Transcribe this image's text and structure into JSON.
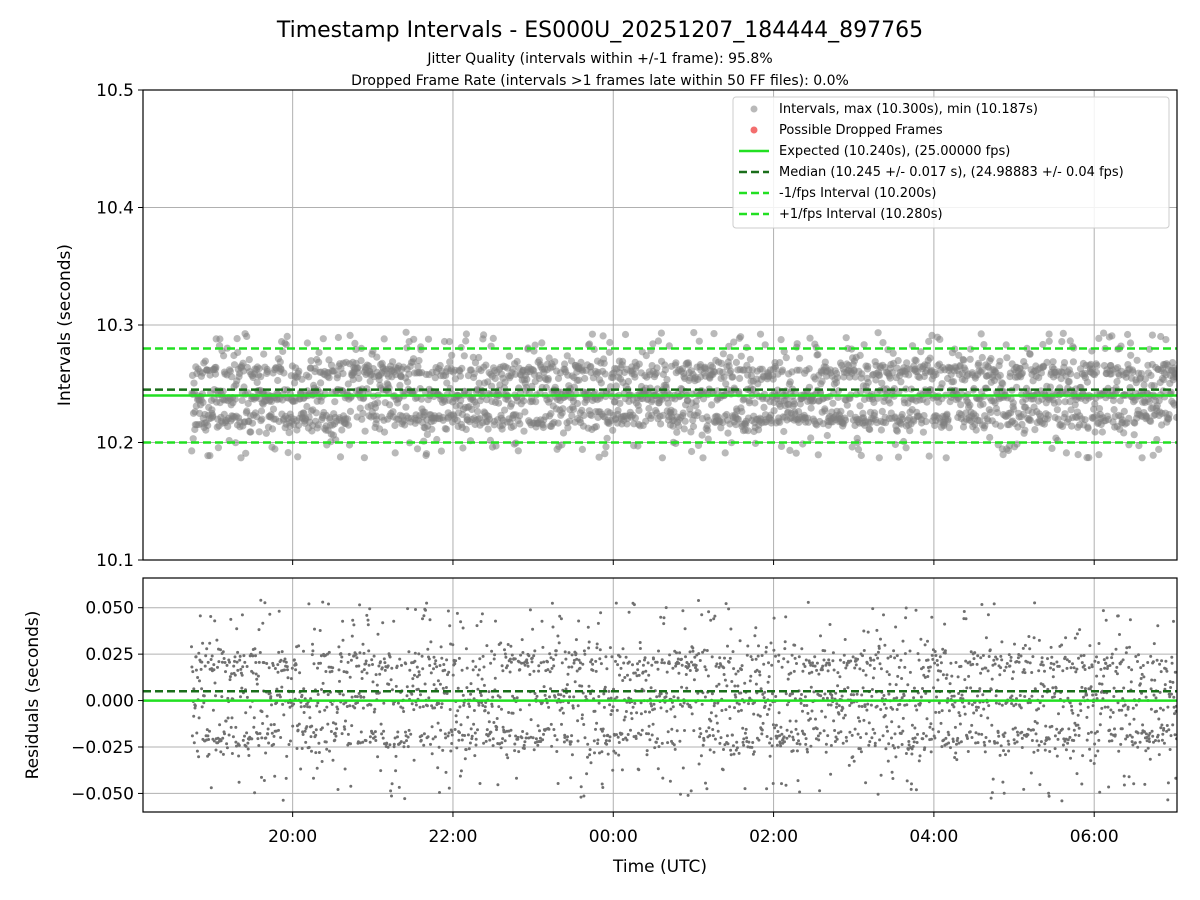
{
  "chart_data": [
    {
      "type": "scatter",
      "title": "Timestamp Intervals - ES000U_20251207_184444_897765",
      "subtitles": [
        "Jitter Quality (intervals within +/-1 frame): 95.8%",
        "Dropped Frame Rate (intervals >1 frames late within 50 FF files): 0.0%"
      ],
      "ylabel": "Intervals (seconds)",
      "xlabel": "",
      "xlim_hours": [
        18.133,
        31.033
      ],
      "ylim": [
        10.1,
        10.5
      ],
      "yticks": [
        10.1,
        10.2,
        10.3,
        10.4,
        10.5
      ],
      "ytick_labels": [
        "10.1",
        "10.2",
        "10.3",
        "10.4",
        "10.5"
      ],
      "xticks_hours": [
        20,
        22,
        24,
        26,
        28,
        30
      ],
      "grid": true,
      "legend_position": "top-right",
      "series": [
        {
          "name": "Intervals, max (10.300s), min (10.187s)",
          "kind": "scatter",
          "color": "#808080",
          "x_range_hours": [
            18.74,
            31.03
          ],
          "clusters": [
            10.22,
            10.24,
            10.26
          ],
          "sample_count": 2600,
          "max": 10.3,
          "min": 10.187
        },
        {
          "name": "Possible Dropped Frames",
          "kind": "scatter",
          "color": "#f04a4a",
          "count": 0
        },
        {
          "name": "Expected (10.240s), (25.00000 fps)",
          "kind": "hline",
          "y": 10.24,
          "color": "#22e022",
          "style": "solid"
        },
        {
          "name": "Median (10.245 +/- 0.017 s), (24.98883 +/- 0.04 fps)",
          "kind": "hline",
          "y": 10.245,
          "color": "#1a6e1a",
          "style": "dashed"
        },
        {
          "name": "-1/fps Interval (10.200s)",
          "kind": "hline",
          "y": 10.2,
          "color": "#22e022",
          "style": "dashed"
        },
        {
          "name": "+1/fps Interval (10.280s)",
          "kind": "hline",
          "y": 10.28,
          "color": "#22e022",
          "style": "dashed"
        }
      ]
    },
    {
      "type": "scatter",
      "ylabel": "Residuals (seconds)",
      "xlabel": "Time (UTC)",
      "xlim_hours": [
        18.133,
        31.033
      ],
      "ylim": [
        -0.06,
        0.066
      ],
      "yticks": [
        -0.05,
        -0.025,
        0.0,
        0.025,
        0.05
      ],
      "ytick_labels": [
        "−0.050",
        "−0.025",
        "0.000",
        "0.025",
        "0.050"
      ],
      "xticks_hours": [
        20,
        22,
        24,
        26,
        28,
        30
      ],
      "xtick_labels": [
        "20:00",
        "22:00",
        "00:00",
        "02:00",
        "04:00",
        "06:00"
      ],
      "grid": true,
      "series": [
        {
          "name": "Residuals",
          "kind": "scatter",
          "color": "#707070",
          "x_range_hours": [
            18.74,
            31.03
          ],
          "clusters": [
            -0.02,
            0.0,
            0.02
          ],
          "sample_count": 2600
        },
        {
          "name": "Expected",
          "kind": "hline",
          "y": 0.0,
          "color": "#22e022",
          "style": "solid"
        },
        {
          "name": "Median",
          "kind": "hline",
          "y": 0.005,
          "color": "#1a6e1a",
          "style": "dashed"
        }
      ]
    }
  ]
}
